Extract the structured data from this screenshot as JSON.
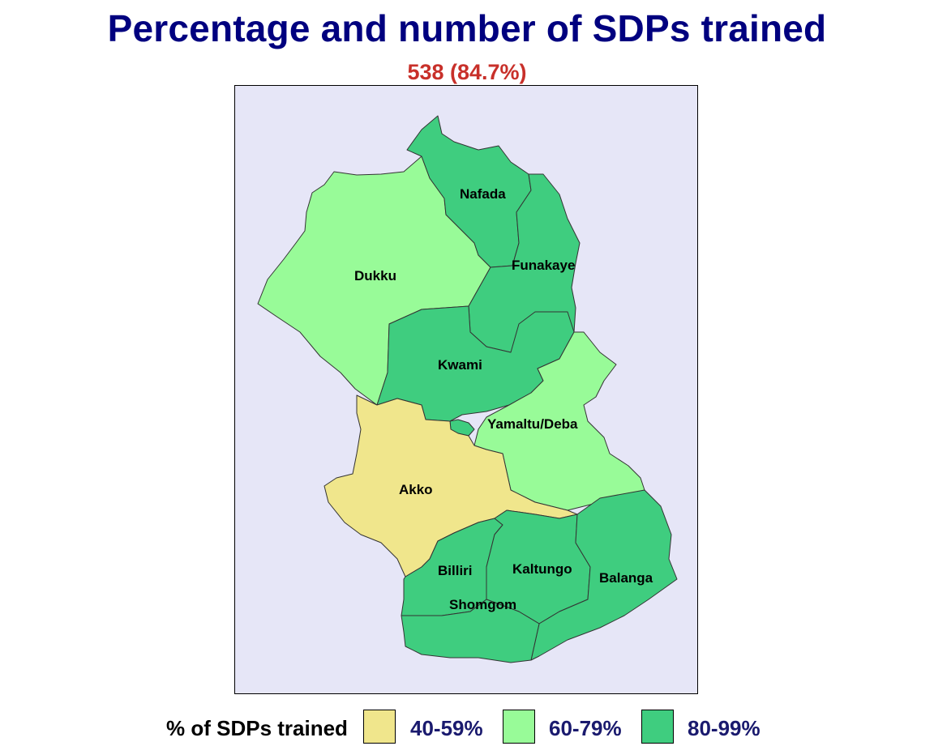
{
  "title": "Percentage and number of SDPs trained",
  "subtitle": "538 (84.7%)",
  "colors": {
    "band_40_59": "#f0e68c",
    "band_60_79": "#98fb98",
    "band_80_99": "#3fcd7f",
    "water": "#e6e6f7",
    "title": "#00007f",
    "subtitle": "#c8302a"
  },
  "regions": [
    {
      "name": "Nafada",
      "band": "80-99%"
    },
    {
      "name": "Funakaye",
      "band": "80-99%"
    },
    {
      "name": "Dukku",
      "band": "60-79%"
    },
    {
      "name": "Kwami",
      "band": "80-99%"
    },
    {
      "name": "Yamaltu/Deba",
      "band": "60-79%"
    },
    {
      "name": "Akko",
      "band": "40-59%"
    },
    {
      "name": "Billiri",
      "band": "80-99%"
    },
    {
      "name": "Kaltungo",
      "band": "80-99%"
    },
    {
      "name": "Balanga",
      "band": "80-99%"
    },
    {
      "name": "Shomgom",
      "band": "80-99%"
    }
  ],
  "legend": {
    "title": "% of SDPs trained",
    "items": [
      {
        "label": "40-59%",
        "color": "#f0e68c"
      },
      {
        "label": "60-79%",
        "color": "#98fb98"
      },
      {
        "label": "80-99%",
        "color": "#3fcd7f"
      }
    ]
  }
}
